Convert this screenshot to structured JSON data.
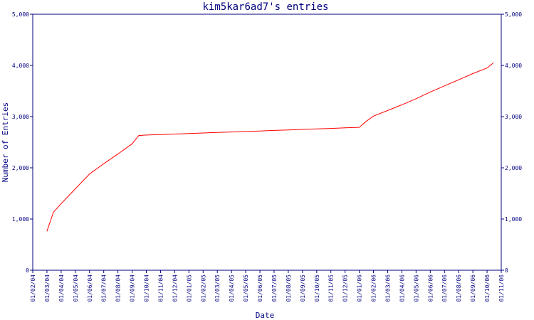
{
  "chart_data": {
    "type": "line",
    "title": "kim5kar6ad7's entries",
    "xlabel": "Date",
    "ylabel": "Number of Entries",
    "ylim": [
      0,
      5000
    ],
    "y_ticks": [
      0,
      1000,
      2000,
      3000,
      4000,
      5000
    ],
    "y_tick_labels": [
      "0",
      "1,000",
      "2,000",
      "3,000",
      "4,000",
      "5,000"
    ],
    "x_tick_labels": [
      "01/02/04",
      "01/03/04",
      "01/04/04",
      "01/05/04",
      "01/06/04",
      "01/07/04",
      "01/08/04",
      "01/09/04",
      "01/10/04",
      "01/11/04",
      "01/12/04",
      "01/01/05",
      "01/02/05",
      "01/03/05",
      "01/04/05",
      "01/05/05",
      "01/06/05",
      "01/07/05",
      "01/08/05",
      "01/09/05",
      "01/10/05",
      "01/11/05",
      "01/12/05",
      "01/01/06",
      "01/02/06",
      "01/03/06",
      "01/04/06",
      "01/05/06",
      "01/06/06",
      "01/07/06",
      "01/08/06",
      "01/09/06",
      "01/10/06",
      "01/11/06"
    ],
    "grid": false,
    "legend": "none",
    "line_color": "#ff0000",
    "axis_color": "#000080",
    "series": [
      {
        "x": [
          "2004-03-01",
          "2004-03-15",
          "2004-04-01",
          "2004-05-01",
          "2004-06-01",
          "2004-07-01",
          "2004-08-01",
          "2004-09-01",
          "2004-09-15",
          "2004-10-01",
          "2004-11-01",
          "2004-12-01",
          "2005-01-01",
          "2005-02-01",
          "2005-03-01",
          "2005-04-01",
          "2005-05-01",
          "2005-06-01",
          "2005-07-01",
          "2005-08-01",
          "2005-09-01",
          "2005-10-01",
          "2005-11-01",
          "2005-12-01",
          "2006-01-01",
          "2006-01-15",
          "2006-02-01",
          "2006-03-01",
          "2006-04-01",
          "2006-05-01",
          "2006-06-01",
          "2006-07-01",
          "2006-08-01",
          "2006-09-01",
          "2006-10-01",
          "2006-10-15"
        ],
        "values": [
          760,
          1130,
          1300,
          1590,
          1880,
          2080,
          2270,
          2470,
          2630,
          2640,
          2650,
          2660,
          2670,
          2680,
          2690,
          2700,
          2710,
          2720,
          2730,
          2740,
          2750,
          2760,
          2770,
          2780,
          2790,
          2900,
          3010,
          3120,
          3230,
          3350,
          3480,
          3600,
          3720,
          3840,
          3950,
          4050
        ]
      }
    ]
  }
}
